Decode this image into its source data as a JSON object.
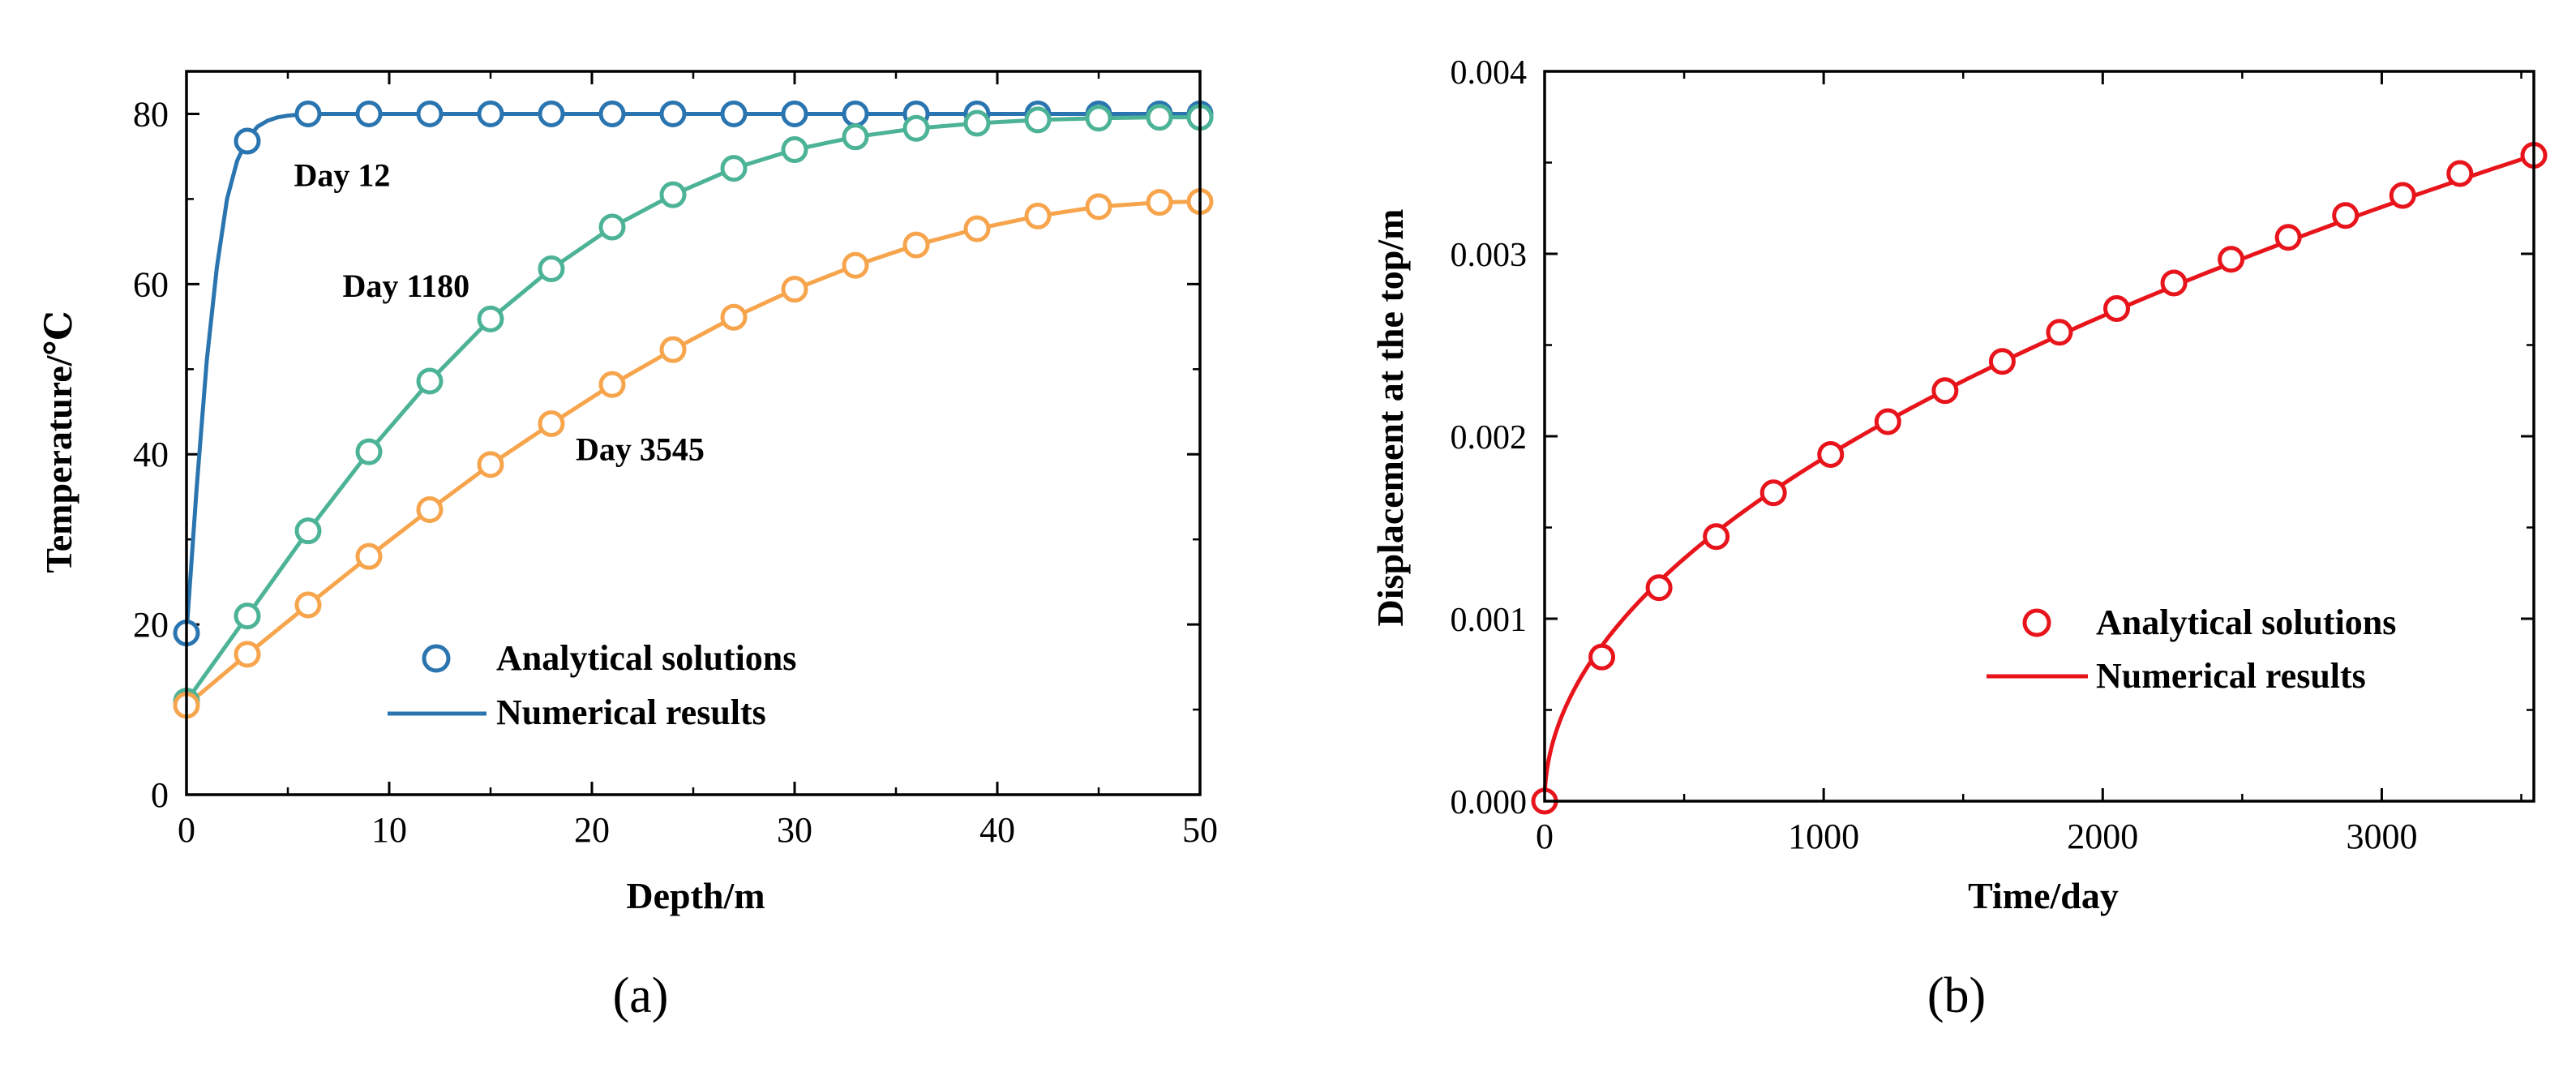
{
  "chart_data": [
    {
      "type": "line",
      "panel_label": "(a)",
      "xlabel": "Depth/m",
      "ylabel": "Temperature/℃",
      "xlim": [
        0,
        50
      ],
      "ylim": [
        0,
        85
      ],
      "xticks": [
        "0",
        "10",
        "20",
        "30",
        "40",
        "50"
      ],
      "yticks": [
        "0",
        "20",
        "40",
        "60",
        "80"
      ],
      "series": [
        {
          "name": "Day 12",
          "color": "#2a75b0",
          "line_x": [
            0,
            0.5,
            1,
            1.5,
            2,
            2.5,
            3,
            3.5,
            4,
            4.5,
            5,
            5.5,
            6,
            7,
            8,
            10,
            50
          ],
          "line_y": [
            19,
            36,
            51,
            62,
            70,
            74.5,
            77,
            78.5,
            79.2,
            79.6,
            79.8,
            79.9,
            80,
            80,
            80,
            80,
            80
          ],
          "marker_x": [
            0,
            3,
            6,
            9,
            12,
            15,
            18,
            21,
            24,
            27,
            30,
            33,
            36,
            39,
            42,
            45,
            48,
            50
          ],
          "marker_y": [
            19,
            76.8,
            80,
            80,
            80,
            80,
            80,
            80,
            80,
            80,
            80,
            80,
            80,
            80,
            80,
            80,
            80,
            80
          ]
        },
        {
          "name": "Day 1180",
          "color": "#4db396",
          "line_x": [
            0,
            3,
            6,
            9,
            12,
            15,
            18,
            21,
            24,
            27,
            30,
            33,
            36,
            39,
            42,
            45,
            48,
            50
          ],
          "line_y": [
            11,
            21,
            31,
            40.3,
            48.6,
            55.9,
            61.8,
            66.7,
            70.5,
            73.6,
            75.8,
            77.3,
            78.3,
            78.9,
            79.3,
            79.5,
            79.6,
            79.6
          ],
          "marker_x": [
            0,
            3,
            6,
            9,
            12,
            15,
            18,
            21,
            24,
            27,
            30,
            33,
            36,
            39,
            42,
            45,
            48,
            50
          ],
          "marker_y": [
            11,
            21,
            31,
            40.3,
            48.6,
            55.9,
            61.8,
            66.7,
            70.5,
            73.6,
            75.8,
            77.3,
            78.3,
            78.9,
            79.3,
            79.5,
            79.6,
            79.6
          ]
        },
        {
          "name": "Day 3545",
          "color": "#f7a54d",
          "line_x": [
            0,
            3,
            6,
            9,
            12,
            15,
            18,
            21,
            24,
            27,
            30,
            33,
            36,
            39,
            42,
            45,
            48,
            50
          ],
          "line_y": [
            10.5,
            16.5,
            22.3,
            28,
            33.5,
            38.8,
            43.6,
            48.2,
            52.3,
            56.1,
            59.4,
            62.2,
            64.6,
            66.5,
            68,
            69.1,
            69.6,
            69.7
          ],
          "marker_x": [
            0,
            3,
            6,
            9,
            12,
            15,
            18,
            21,
            24,
            27,
            30,
            33,
            36,
            39,
            42,
            45,
            48,
            50
          ],
          "marker_y": [
            10.5,
            16.5,
            22.3,
            28,
            33.5,
            38.8,
            43.6,
            48.2,
            52.3,
            56.1,
            59.4,
            62.2,
            64.6,
            66.5,
            68,
            69.1,
            69.6,
            69.7
          ]
        }
      ],
      "annotations": [
        {
          "text": "Day 12",
          "x": 5.3,
          "y": 71.5
        },
        {
          "text": "Day 1180",
          "x": 7.7,
          "y": 58.5
        },
        {
          "text": "Day 3545",
          "x": 19.2,
          "y": 39.3
        }
      ],
      "legend": {
        "position": "bottom-center",
        "entries": [
          {
            "label": "Analytical solutions",
            "kind": "marker",
            "color": "#2a75b0"
          },
          {
            "label": "Numerical results",
            "kind": "line",
            "color": "#2a75b0"
          }
        ]
      }
    },
    {
      "type": "line",
      "panel_label": "(b)",
      "xlabel": "Time/day",
      "ylabel": "Displacement at the top/m",
      "xlim": [
        0,
        3545
      ],
      "ylim": [
        0,
        0.004
      ],
      "xticks": [
        "0",
        "1000",
        "2000",
        "3000"
      ],
      "yticks": [
        "0.000",
        "0.001",
        "0.002",
        "0.003",
        "0.004"
      ],
      "series": [
        {
          "name": "Displacement at the top",
          "color": "#e8141b",
          "marker_x": [
            0,
            205,
            410,
            615,
            820,
            1025,
            1230,
            1435,
            1640,
            1845,
            2050,
            2255,
            2460,
            2665,
            2870,
            3075,
            3280,
            3545
          ],
          "marker_y": [
            0,
            0.00079,
            0.00117,
            0.00145,
            0.00169,
            0.0019,
            0.00208,
            0.00225,
            0.00241,
            0.00257,
            0.0027,
            0.00284,
            0.00297,
            0.00309,
            0.00321,
            0.00332,
            0.00344,
            0.00354
          ]
        }
      ],
      "legend": {
        "position": "center-right",
        "entries": [
          {
            "label": "Analytical solutions",
            "kind": "marker",
            "color": "#e8141b"
          },
          {
            "label": "Numerical results",
            "kind": "line",
            "color": "#e8141b"
          }
        ]
      }
    }
  ]
}
